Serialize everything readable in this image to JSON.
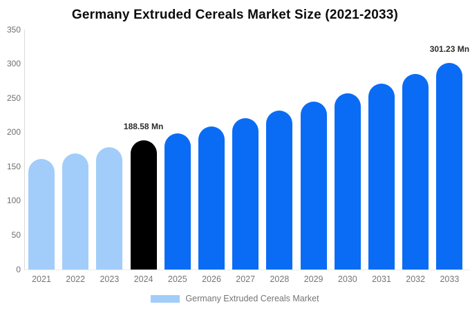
{
  "title": "Germany Extruded Cereals Market Size (2021-2033)",
  "legend": {
    "label": "Germany Extruded Cereals Market"
  },
  "colors": {
    "historical": "#A2CDFA",
    "base_year": "#000000",
    "forecast": "#0A6CF5",
    "axis_line": "#D9D9D9",
    "tick_text": "#6E6E6E",
    "annotation_text": "#2B2B2B"
  },
  "chart_data": {
    "type": "bar",
    "title": "Germany Extruded Cereals Market Size (2021-2033)",
    "xlabel": "",
    "ylabel": "",
    "ylim": [
      0,
      350
    ],
    "yticks": [
      0,
      50,
      100,
      150,
      200,
      250,
      300,
      350
    ],
    "grid": false,
    "legend_position": "bottom",
    "categories": [
      "2021",
      "2022",
      "2023",
      "2024",
      "2025",
      "2026",
      "2027",
      "2028",
      "2029",
      "2030",
      "2031",
      "2032",
      "2033"
    ],
    "values": [
      161.32,
      169.94,
      179.02,
      188.58,
      198.65,
      209.27,
      220.44,
      232.22,
      244.62,
      257.69,
      271.46,
      285.96,
      301.23
    ],
    "roles": [
      "historical",
      "historical",
      "historical",
      "base_year",
      "forecast",
      "forecast",
      "forecast",
      "forecast",
      "forecast",
      "forecast",
      "forecast",
      "forecast",
      "forecast"
    ],
    "annotations": [
      {
        "category": "2024",
        "text": "188.58 Mn"
      },
      {
        "category": "2033",
        "text": "301.23 Mn"
      }
    ]
  }
}
